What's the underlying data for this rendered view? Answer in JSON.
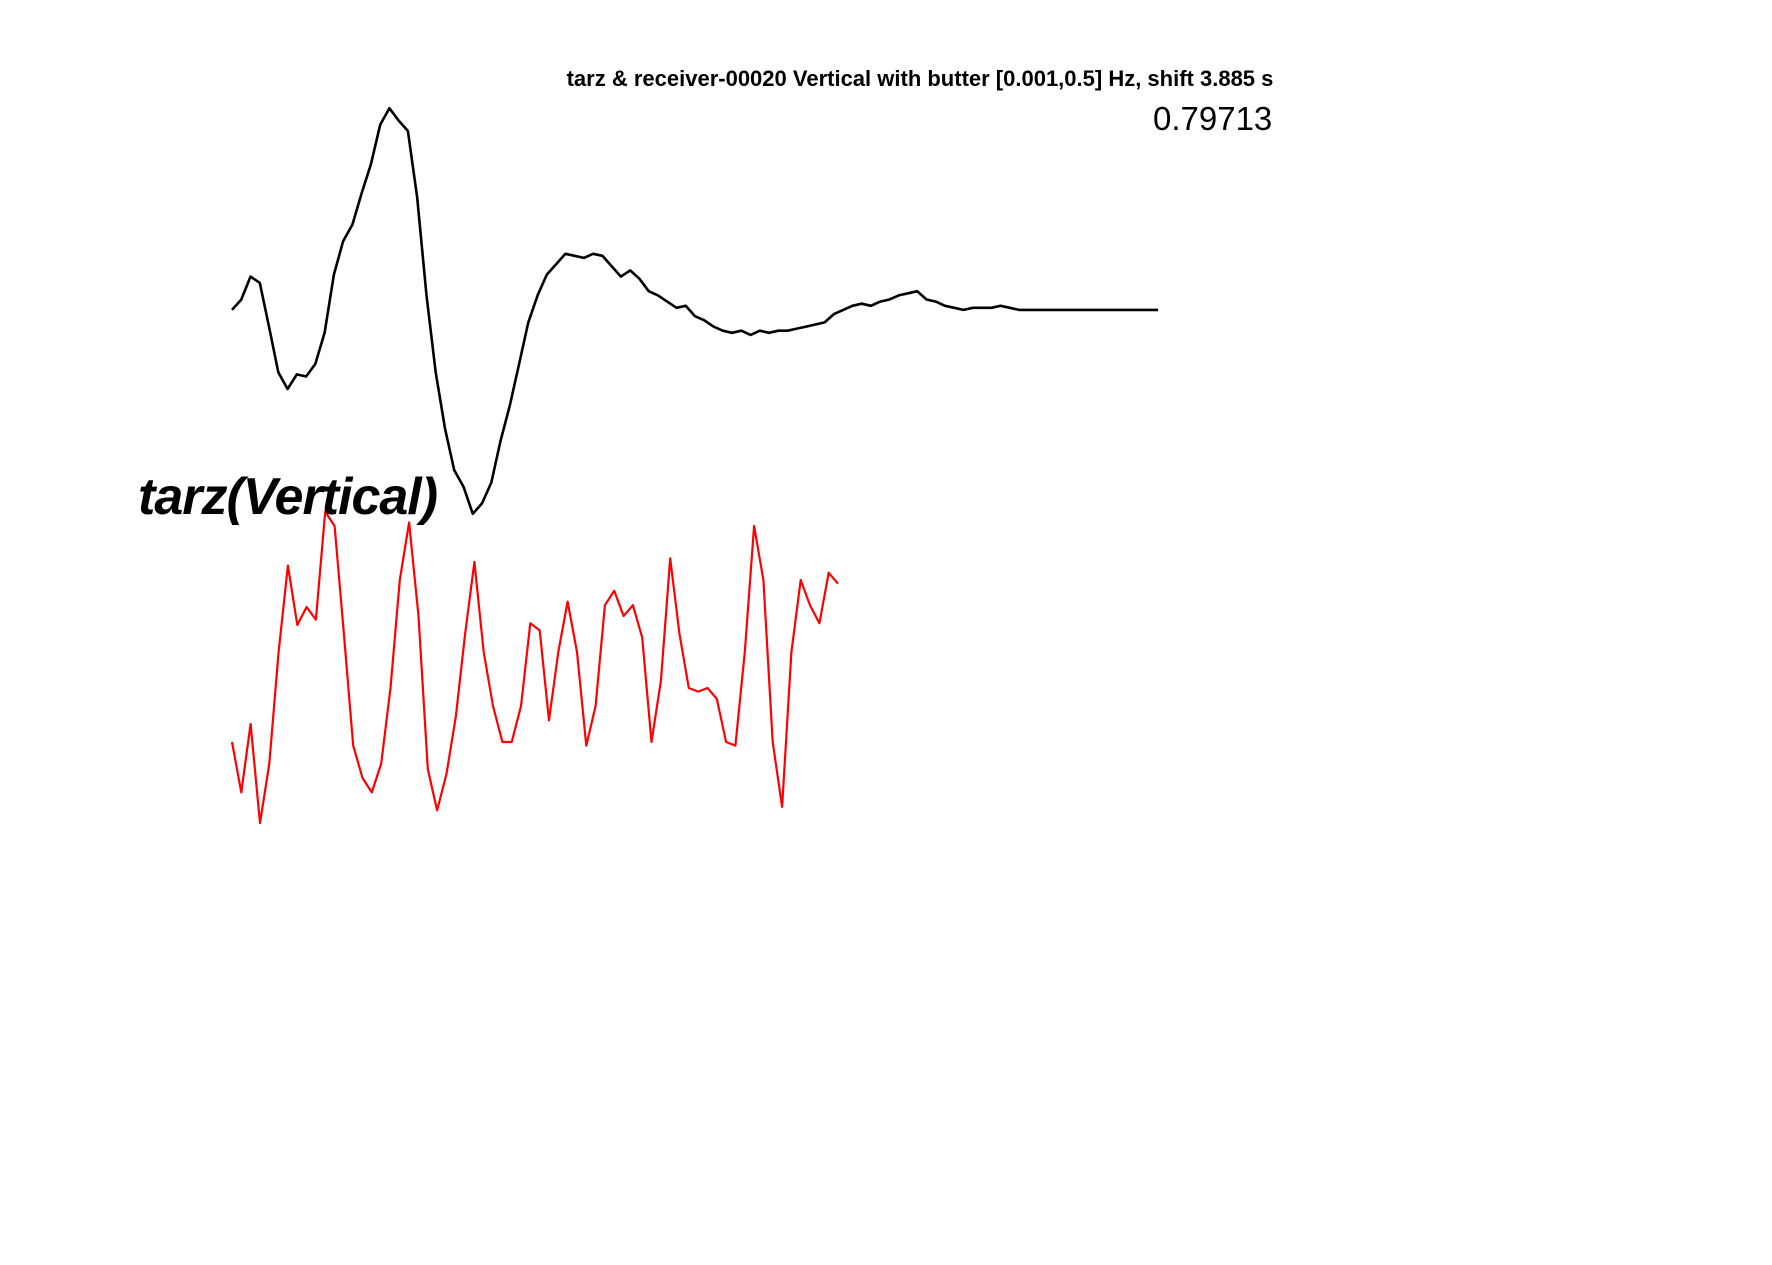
{
  "chart_data": {
    "type": "line",
    "title": "tarz & receiver-00020 Vertical with butter [0.001,0.5] Hz, shift 3.885 s",
    "correlation_label": "0.79713",
    "station_label": "tarz(Vertical)",
    "xlabel": "",
    "ylabel": "",
    "grid": false,
    "axes_visible": false,
    "series": [
      {
        "color": "#000000",
        "x": [
          0,
          1,
          2,
          3,
          4,
          5,
          6,
          7,
          8,
          9,
          10,
          11,
          12,
          13,
          14,
          15,
          16,
          17,
          18,
          19,
          20,
          21,
          22,
          23,
          24,
          25,
          26,
          27,
          28,
          29,
          30,
          31,
          32,
          33,
          34,
          35,
          36,
          37,
          38,
          39,
          40,
          41,
          42,
          43,
          44,
          45,
          46,
          47,
          48,
          49,
          50,
          51,
          52,
          53,
          54,
          55,
          56,
          57,
          58,
          59,
          60,
          61,
          62,
          63,
          64,
          65,
          66,
          67,
          68,
          69,
          70,
          71,
          72,
          73,
          74,
          75,
          76,
          77,
          78,
          79,
          80,
          81,
          82,
          83,
          84,
          85,
          86,
          87,
          88,
          89,
          90,
          91,
          92,
          93,
          94,
          95,
          96,
          97,
          98,
          99,
          100
        ],
        "y": [
          0.01,
          0.06,
          0.17,
          0.14,
          -0.07,
          -0.29,
          -0.37,
          -0.3,
          -0.31,
          -0.25,
          -0.1,
          0.18,
          0.34,
          0.42,
          0.57,
          0.71,
          0.9,
          0.98,
          0.92,
          0.87,
          0.55,
          0.08,
          -0.29,
          -0.56,
          -0.76,
          -0.84,
          -0.97,
          -0.92,
          -0.82,
          -0.62,
          -0.45,
          -0.25,
          -0.05,
          0.08,
          0.18,
          0.23,
          0.28,
          0.27,
          0.26,
          0.28,
          0.27,
          0.22,
          0.17,
          0.2,
          0.16,
          0.1,
          0.08,
          0.05,
          0.02,
          0.03,
          -0.02,
          -0.04,
          -0.07,
          -0.09,
          -0.1,
          -0.09,
          -0.11,
          -0.09,
          -0.1,
          -0.09,
          -0.09,
          -0.08,
          -0.07,
          -0.06,
          -0.05,
          -0.01,
          0.01,
          0.03,
          0.04,
          0.03,
          0.05,
          0.06,
          0.08,
          0.09,
          0.1,
          0.06,
          0.05,
          0.03,
          0.02,
          0.01,
          0.02,
          0.02,
          0.02,
          0.03,
          0.02,
          0.01,
          0.01,
          0.01,
          0.01,
          0.01,
          0.01,
          0.01,
          0.01,
          0.01,
          0.01,
          0.01,
          0.01,
          0.01,
          0.01,
          0.01,
          0.01
        ]
      },
      {
        "color": "#ff0000",
        "x": [
          0,
          1,
          2,
          3,
          4,
          5,
          6,
          7,
          8,
          9,
          10,
          11,
          12,
          13,
          14,
          15,
          16,
          17,
          18,
          19,
          20,
          21,
          22,
          23,
          24,
          25,
          26,
          27,
          28,
          29,
          30,
          31,
          32,
          33,
          34,
          35,
          36,
          37,
          38,
          39,
          40,
          41,
          42,
          43,
          44,
          45,
          46,
          47,
          48,
          49,
          50,
          51,
          52,
          53,
          54,
          55,
          56,
          57,
          58,
          59,
          60,
          61,
          62,
          63,
          64,
          65
        ],
        "y": [
          -0.3,
          -0.58,
          -0.2,
          -0.75,
          -0.42,
          0.2,
          0.68,
          0.35,
          0.45,
          0.38,
          0.98,
          0.9,
          0.3,
          -0.32,
          -0.5,
          -0.58,
          -0.42,
          0.0,
          0.6,
          0.92,
          0.4,
          -0.45,
          -0.68,
          -0.48,
          -0.16,
          0.3,
          0.7,
          0.2,
          -0.1,
          -0.3,
          -0.3,
          -0.1,
          0.36,
          0.32,
          -0.18,
          0.2,
          0.48,
          0.2,
          -0.32,
          -0.1,
          0.46,
          0.54,
          0.4,
          0.46,
          0.28,
          -0.3,
          0.04,
          0.72,
          0.3,
          0.0,
          -0.02,
          0.0,
          -0.06,
          -0.3,
          -0.32,
          0.2,
          0.9,
          0.6,
          -0.3,
          -0.66,
          0.2,
          0.6,
          0.46,
          0.36,
          0.64,
          0.58
        ]
      }
    ]
  }
}
